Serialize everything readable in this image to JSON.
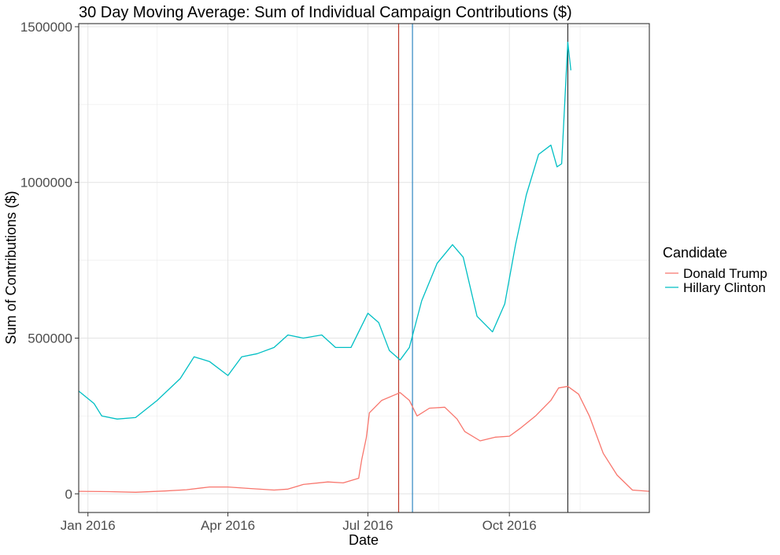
{
  "chart_data": {
    "type": "line",
    "title": "30 Day Moving Average: Sum of Individual Campaign Contributions ($)",
    "xlabel": "Date",
    "ylabel": "Sum of Contributions ($)",
    "xlim": [
      "2015-12-26",
      "2016-12-31"
    ],
    "ylim": [
      -60000,
      1510000
    ],
    "x_ticks": [
      {
        "date": "2016-01-01",
        "label": "Jan 2016"
      },
      {
        "date": "2016-04-01",
        "label": "Apr 2016"
      },
      {
        "date": "2016-07-01",
        "label": "Jul 2016"
      },
      {
        "date": "2016-10-01",
        "label": "Oct 2016"
      }
    ],
    "x_minor_ticks": [
      "2016-02-15",
      "2016-05-16",
      "2016-08-16",
      "2016-11-16"
    ],
    "y_ticks": [
      {
        "value": 0,
        "label": "0"
      },
      {
        "value": 500000,
        "label": "500000"
      },
      {
        "value": 1000000,
        "label": "1000000"
      },
      {
        "value": 1500000,
        "label": "1500000"
      }
    ],
    "y_minor_ticks": [
      250000,
      750000,
      1250000
    ],
    "grid": true,
    "legend": {
      "title": "Candidate",
      "position": "right",
      "entries": [
        {
          "name": "Donald Trump",
          "color": "#F8766D"
        },
        {
          "name": "Hillary Clinton",
          "color": "#00BFC4"
        }
      ]
    },
    "vlines": [
      {
        "date": "2016-07-21",
        "color": "#c0392b"
      },
      {
        "date": "2016-07-30",
        "color": "#2e86c1"
      },
      {
        "date": "2016-11-08",
        "color": "#333333"
      }
    ],
    "series": [
      {
        "name": "Donald Trump",
        "color": "#F8766D",
        "points": [
          [
            "2015-12-26",
            8000
          ],
          [
            "2016-01-15",
            7000
          ],
          [
            "2016-02-01",
            5000
          ],
          [
            "2016-02-20",
            9000
          ],
          [
            "2016-03-05",
            13000
          ],
          [
            "2016-03-20",
            22000
          ],
          [
            "2016-04-01",
            22000
          ],
          [
            "2016-04-15",
            17000
          ],
          [
            "2016-05-01",
            12000
          ],
          [
            "2016-05-10",
            15000
          ],
          [
            "2016-05-20",
            30000
          ],
          [
            "2016-06-05",
            38000
          ],
          [
            "2016-06-15",
            35000
          ],
          [
            "2016-06-25",
            50000
          ],
          [
            "2016-06-27",
            110000
          ],
          [
            "2016-06-30",
            180000
          ],
          [
            "2016-07-02",
            260000
          ],
          [
            "2016-07-10",
            300000
          ],
          [
            "2016-07-22",
            325000
          ],
          [
            "2016-07-28",
            300000
          ],
          [
            "2016-08-02",
            250000
          ],
          [
            "2016-08-10",
            275000
          ],
          [
            "2016-08-20",
            278000
          ],
          [
            "2016-08-28",
            240000
          ],
          [
            "2016-09-02",
            200000
          ],
          [
            "2016-09-12",
            170000
          ],
          [
            "2016-09-22",
            182000
          ],
          [
            "2016-10-01",
            185000
          ],
          [
            "2016-10-08",
            210000
          ],
          [
            "2016-10-18",
            250000
          ],
          [
            "2016-10-28",
            300000
          ],
          [
            "2016-11-02",
            340000
          ],
          [
            "2016-11-08",
            345000
          ],
          [
            "2016-11-15",
            320000
          ],
          [
            "2016-11-22",
            250000
          ],
          [
            "2016-12-01",
            130000
          ],
          [
            "2016-12-10",
            60000
          ],
          [
            "2016-12-20",
            12000
          ],
          [
            "2016-12-31",
            8000
          ]
        ]
      },
      {
        "name": "Hillary Clinton",
        "color": "#00BFC4",
        "points": [
          [
            "2015-12-26",
            330000
          ],
          [
            "2016-01-05",
            290000
          ],
          [
            "2016-01-10",
            250000
          ],
          [
            "2016-01-20",
            240000
          ],
          [
            "2016-02-01",
            245000
          ],
          [
            "2016-02-15",
            300000
          ],
          [
            "2016-03-01",
            370000
          ],
          [
            "2016-03-10",
            440000
          ],
          [
            "2016-03-20",
            425000
          ],
          [
            "2016-04-01",
            380000
          ],
          [
            "2016-04-10",
            440000
          ],
          [
            "2016-04-20",
            450000
          ],
          [
            "2016-05-01",
            470000
          ],
          [
            "2016-05-10",
            510000
          ],
          [
            "2016-05-20",
            500000
          ],
          [
            "2016-06-01",
            510000
          ],
          [
            "2016-06-10",
            470000
          ],
          [
            "2016-06-20",
            470000
          ],
          [
            "2016-07-01",
            580000
          ],
          [
            "2016-07-08",
            550000
          ],
          [
            "2016-07-15",
            460000
          ],
          [
            "2016-07-22",
            430000
          ],
          [
            "2016-07-28",
            470000
          ],
          [
            "2016-08-05",
            620000
          ],
          [
            "2016-08-15",
            740000
          ],
          [
            "2016-08-25",
            800000
          ],
          [
            "2016-09-01",
            760000
          ],
          [
            "2016-09-10",
            570000
          ],
          [
            "2016-09-20",
            520000
          ],
          [
            "2016-09-28",
            610000
          ],
          [
            "2016-10-05",
            800000
          ],
          [
            "2016-10-12",
            960000
          ],
          [
            "2016-10-20",
            1090000
          ],
          [
            "2016-10-28",
            1120000
          ],
          [
            "2016-11-01",
            1050000
          ],
          [
            "2016-11-04",
            1060000
          ],
          [
            "2016-11-08",
            1450000
          ],
          [
            "2016-11-10",
            1360000
          ]
        ]
      }
    ]
  }
}
